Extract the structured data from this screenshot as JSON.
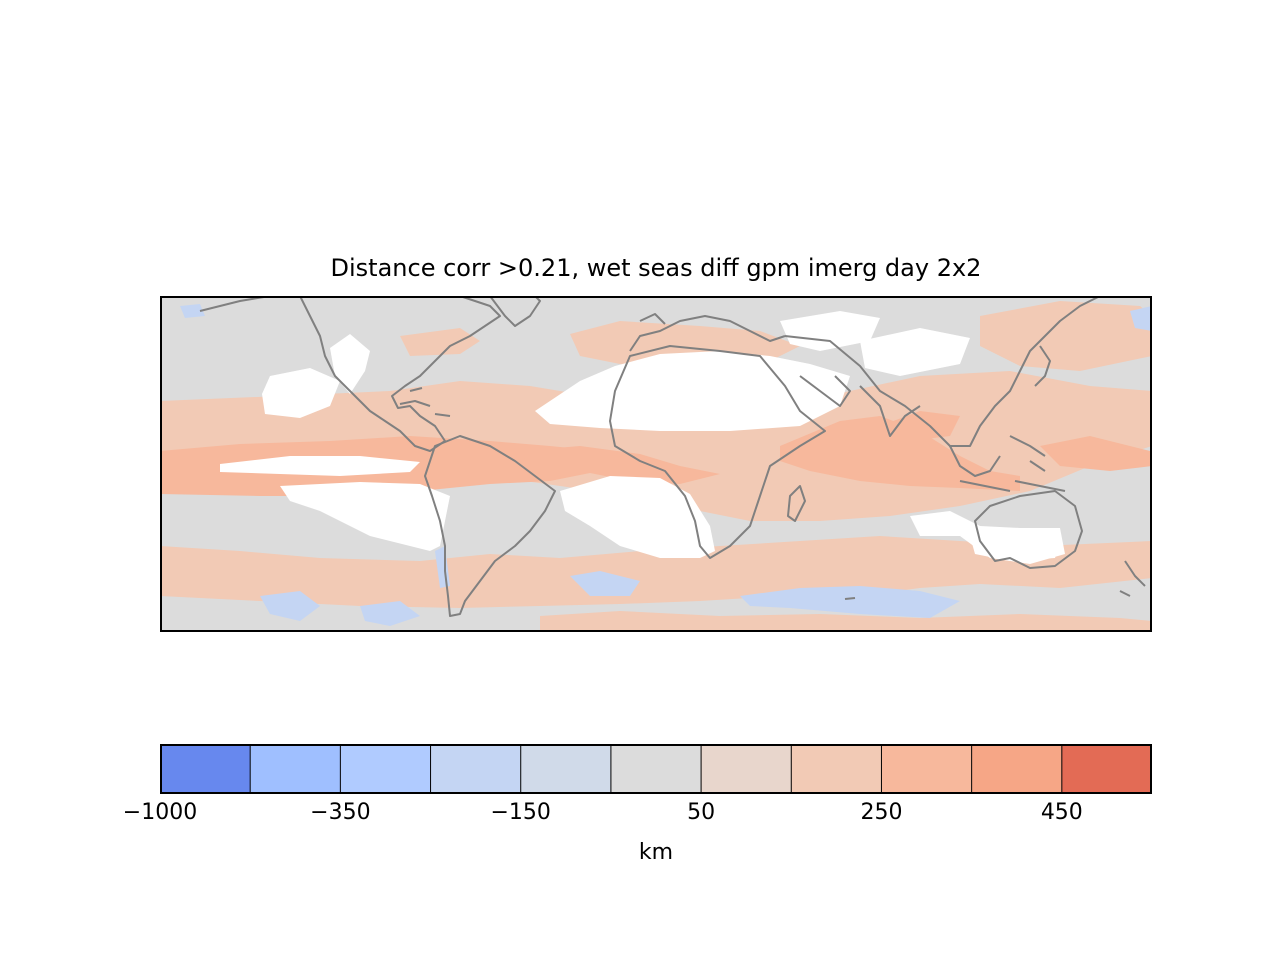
{
  "title": "Distance corr >0.21, wet seas diff gpm imerg day 2x2",
  "colorbar": {
    "label": "km",
    "ticks": [
      "−1000",
      "−350",
      "−150",
      "50",
      "250",
      "450"
    ],
    "colors": [
      "#6788ee",
      "#9fbfff",
      "#b0cbff",
      "#c4d5f3",
      "#d0dae9",
      "#dcdcdc",
      "#e8d6cc",
      "#f2cab5",
      "#f7b89c",
      "#f6a686",
      "#e36b55"
    ]
  },
  "map": {
    "background_color": "#dcdcdc",
    "coastline_color": "#808080"
  }
}
